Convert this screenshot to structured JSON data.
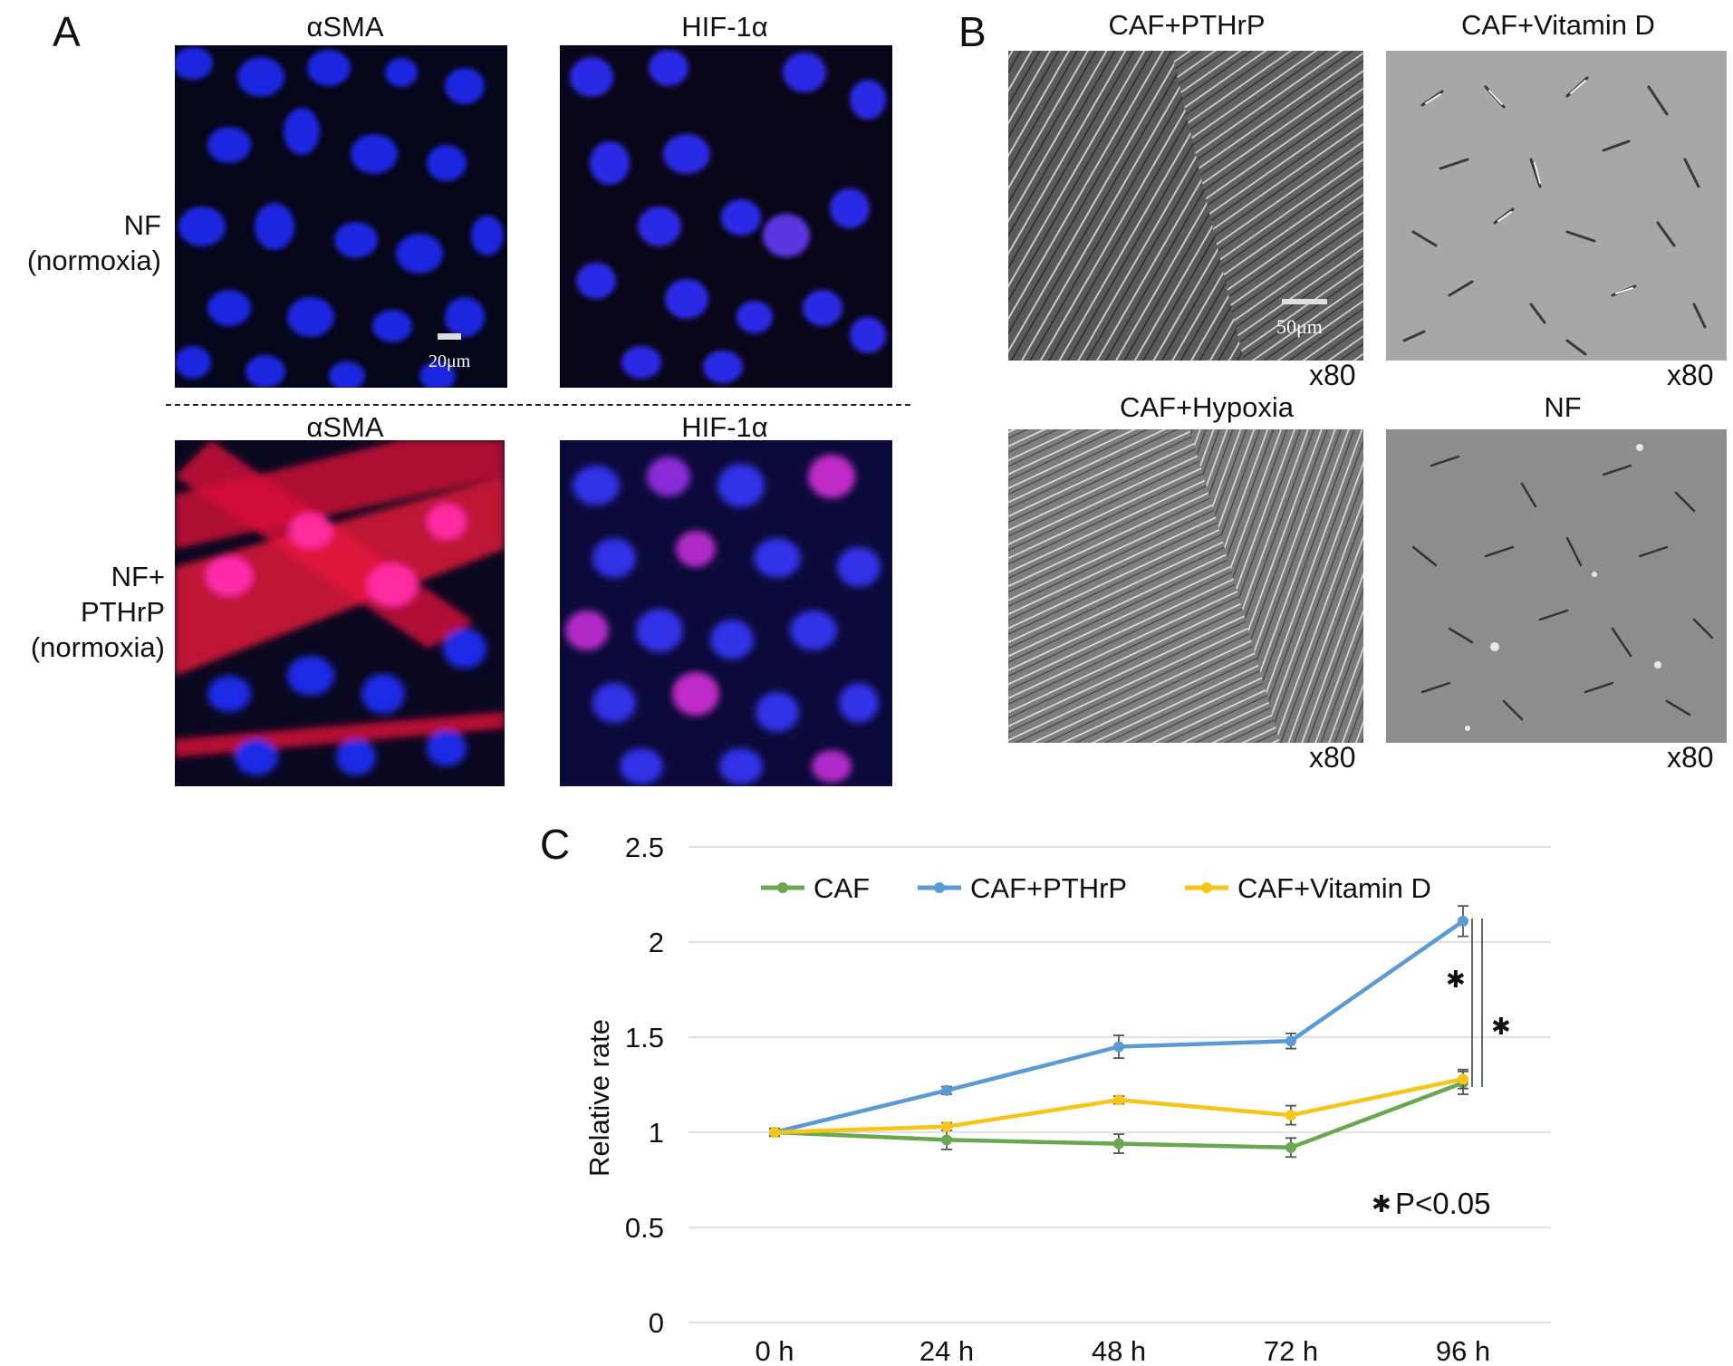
{
  "panelA": {
    "letter": "A",
    "columns": [
      "αSMA",
      "HIF-1α"
    ],
    "rows": [
      {
        "label_lines": [
          "NF",
          "(normoxia)"
        ]
      },
      {
        "label_lines": [
          "NF+",
          "PTHrP",
          "(normoxia)"
        ]
      }
    ],
    "scale_bar": "20μm"
  },
  "panelB": {
    "letter": "B",
    "images": [
      {
        "title": "CAF+PTHrP",
        "magnification": "x80"
      },
      {
        "title": "CAF+Vitamin D",
        "magnification": "x80"
      },
      {
        "title": "CAF+Hypoxia",
        "magnification": "x80"
      },
      {
        "title": "NF",
        "magnification": "x80"
      }
    ],
    "scale_bar": "50μm"
  },
  "panelC": {
    "letter": "C",
    "significance_note": "P<0.05",
    "colors": {
      "CAF": "#6aa84f",
      "CAF+PTHrP": "#5b9bd5",
      "CAF+Vitamin D": "#f5c518"
    }
  },
  "chart_data": {
    "type": "line",
    "categories": [
      "0 h",
      "24 h",
      "48 h",
      "72 h",
      "96 h"
    ],
    "ylabel": "Relative rate",
    "xlabel": "",
    "ylim": [
      0,
      2.5
    ],
    "yticks": [
      "0",
      "0.5",
      "1",
      "1.5",
      "2",
      "2.5"
    ],
    "grid": true,
    "legend": "top",
    "series": [
      {
        "name": "CAF",
        "values": [
          1.0,
          0.96,
          0.94,
          0.92,
          1.26
        ],
        "errors": [
          0.02,
          0.05,
          0.05,
          0.05,
          0.06
        ]
      },
      {
        "name": "CAF+PTHrP",
        "values": [
          1.0,
          1.22,
          1.45,
          1.48,
          2.11
        ],
        "errors": [
          0.02,
          0.02,
          0.06,
          0.04,
          0.08
        ]
      },
      {
        "name": "CAF+Vitamin D",
        "values": [
          1.0,
          1.03,
          1.17,
          1.09,
          1.28
        ],
        "errors": [
          0.02,
          0.02,
          0.02,
          0.05,
          0.05
        ]
      }
    ]
  }
}
